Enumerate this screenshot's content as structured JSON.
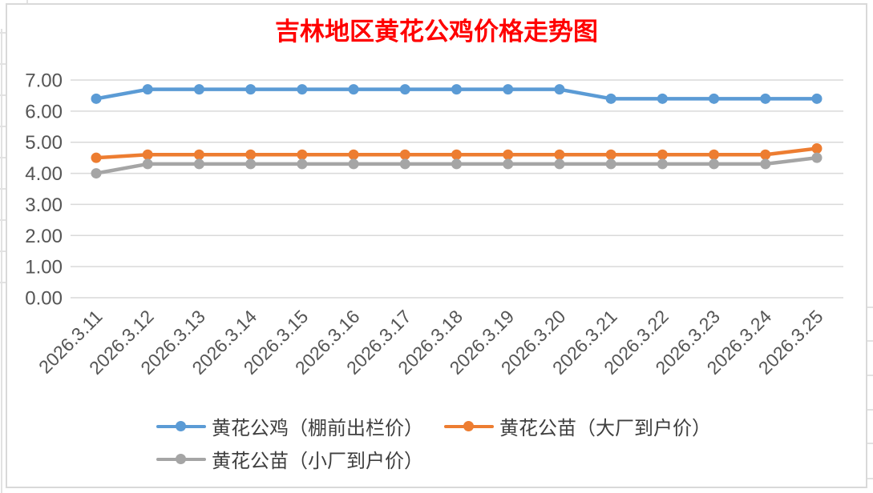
{
  "chart_data": {
    "type": "line",
    "title": "吉林地区黄花公鸡价格走势图",
    "title_color": "#ff0000",
    "categories": [
      "2026.3.11",
      "2026.3.12",
      "2026.3.13",
      "2026.3.14",
      "2026.3.15",
      "2026.3.16",
      "2026.3.17",
      "2026.3.18",
      "2026.3.19",
      "2026.3.20",
      "2026.3.21",
      "2026.3.22",
      "2026.3.23",
      "2026.3.24",
      "2026.3.25"
    ],
    "series": [
      {
        "name": "黄花公鸡（棚前出栏价）",
        "color": "#5b9bd5",
        "values": [
          6.4,
          6.7,
          6.7,
          6.7,
          6.7,
          6.7,
          6.7,
          6.7,
          6.7,
          6.7,
          6.4,
          6.4,
          6.4,
          6.4,
          6.4
        ]
      },
      {
        "name": "黄花公苗（大厂到户价）",
        "color": "#ed7d31",
        "values": [
          4.5,
          4.6,
          4.6,
          4.6,
          4.6,
          4.6,
          4.6,
          4.6,
          4.6,
          4.6,
          4.6,
          4.6,
          4.6,
          4.6,
          4.8
        ]
      },
      {
        "name": "黄花公苗（小厂到户价）",
        "color": "#a5a5a5",
        "values": [
          4.0,
          4.3,
          4.3,
          4.3,
          4.3,
          4.3,
          4.3,
          4.3,
          4.3,
          4.3,
          4.3,
          4.3,
          4.3,
          4.3,
          4.5
        ]
      }
    ],
    "ylim": [
      0,
      7
    ],
    "ytick_labels": [
      "0.00",
      "1.00",
      "2.00",
      "3.00",
      "4.00",
      "5.00",
      "6.00",
      "7.00"
    ],
    "xlabel": "",
    "ylabel": "",
    "grid": true,
    "legend_position": "bottom",
    "x_tick_angle": 45
  },
  "colors": {
    "gridline": "#d9d9d9",
    "axis_text": "#555555",
    "legend_text": "#3f3f3f",
    "frame_border": "#d9d9d9"
  }
}
